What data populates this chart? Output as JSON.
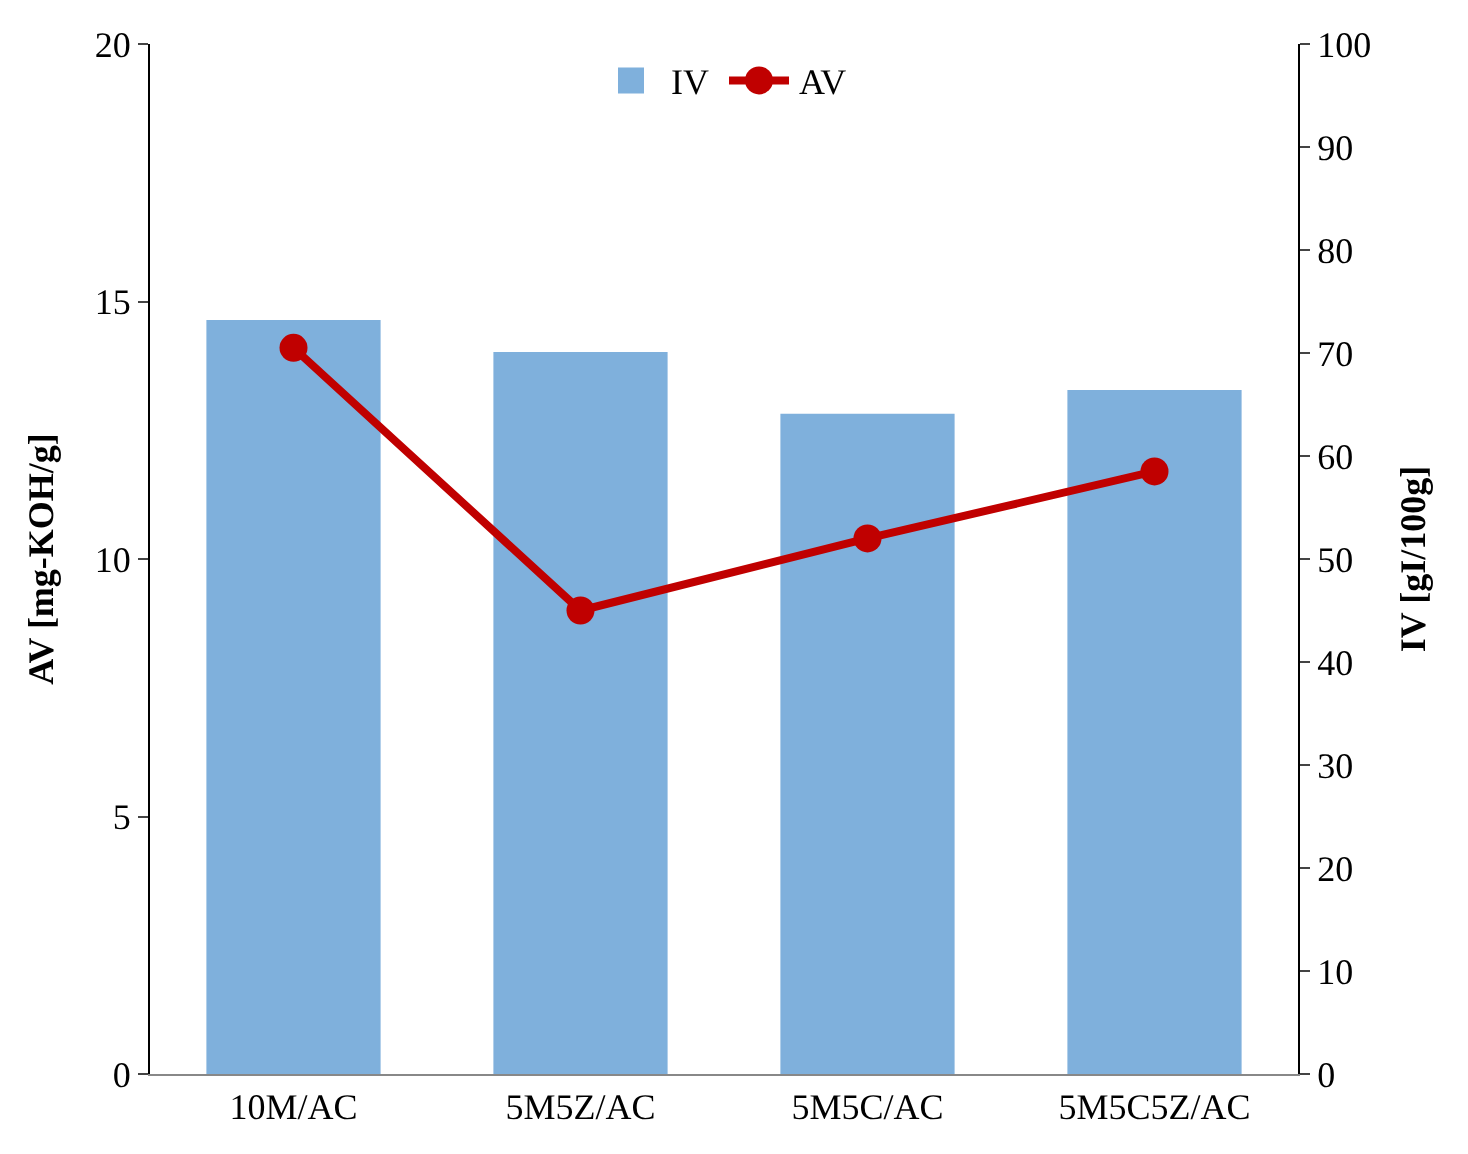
{
  "chart_data": {
    "type": "bar",
    "categories": [
      "10M/AC",
      "5M5Z/AC",
      "5M5C/AC",
      "5M5C5Z/AC"
    ],
    "series": [
      {
        "name": "IV",
        "axis": "y2",
        "color": "#7fb0dc",
        "values": [
          73.1,
          70.0,
          64.0,
          66.3
        ]
      },
      {
        "name": "AV",
        "type": "line",
        "axis": "y",
        "color": "#c00000",
        "marker": "circle",
        "values": [
          14.1,
          9.0,
          10.4,
          11.7
        ]
      }
    ],
    "ylabel": "AV [mg-KOH/g]",
    "y2label": "IV [gI/100g]",
    "ylim": [
      0,
      20
    ],
    "yticks": [
      0,
      5,
      10,
      15,
      20
    ],
    "y2lim": [
      0,
      100
    ],
    "y2ticks": [
      0,
      10,
      20,
      30,
      40,
      50,
      60,
      70,
      80,
      90,
      100
    ],
    "legend": "top"
  }
}
